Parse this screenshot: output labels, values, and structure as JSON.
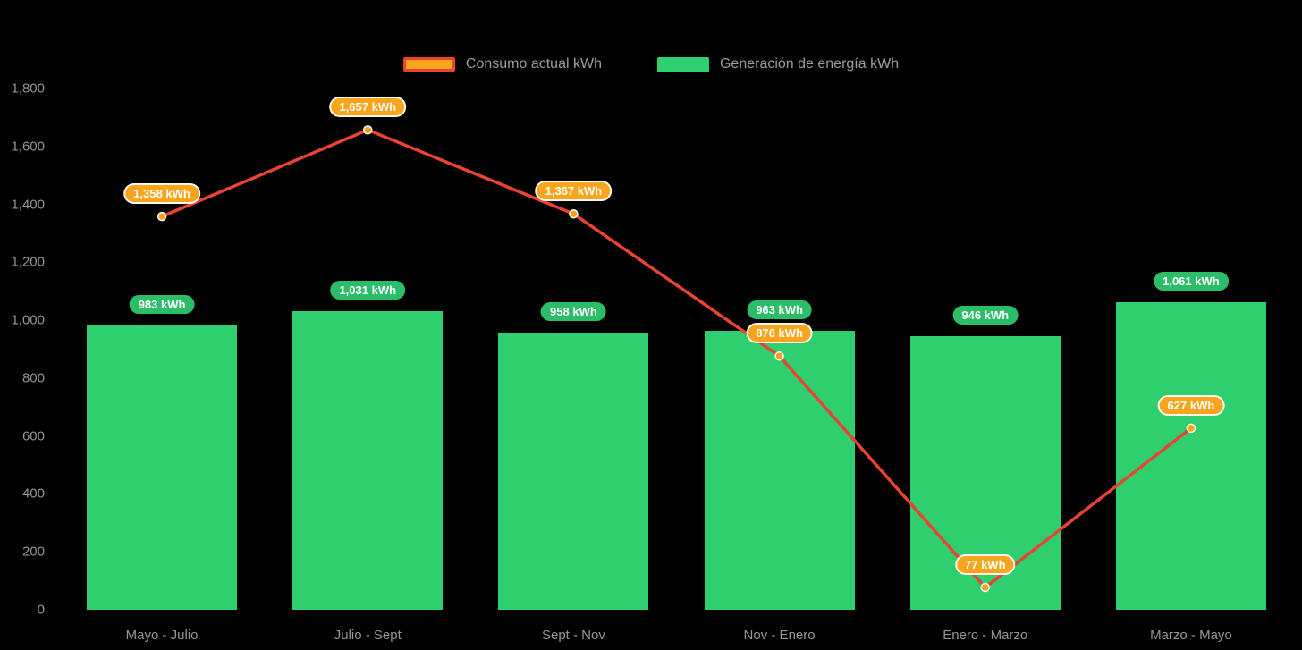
{
  "legend": {
    "position": "top",
    "items": [
      {
        "label": "Consumo actual kWh",
        "swatch": "orange-with-red-border"
      },
      {
        "label": "Generación de energía kWh",
        "swatch": "green"
      }
    ]
  },
  "chart_data": {
    "type": "combo",
    "title": "",
    "xlabel": "",
    "ylabel": "",
    "grid": false,
    "legend_position": "top",
    "background": "#000000",
    "axis_text_color": "#959595",
    "categories": [
      "Mayo - Julio",
      "Julio - Sept",
      "Sept - Nov",
      "Nov - Enero",
      "Enero - Marzo",
      "Marzo - Mayo"
    ],
    "series": [
      {
        "name": "Consumo actual kWh",
        "type": "line",
        "color": "#e94433",
        "point_color": "#f8a41d",
        "label_bg": "#f8a41d",
        "values": [
          1358,
          1657,
          1367,
          876,
          77,
          627
        ],
        "labels": [
          "1,358 kWh",
          "1,657 kWh",
          "1,367 kWh",
          "876 kWh",
          "77 kWh",
          "627 kWh"
        ]
      },
      {
        "name": "Generación de energía kWh",
        "type": "bar",
        "color": "#2fce6f",
        "label_bg": "#2cbd68",
        "values": [
          983,
          1031,
          958,
          963,
          946,
          1061
        ],
        "labels": [
          "983 kWh",
          "1,031 kWh",
          "958 kWh",
          "963 kWh",
          "946 kWh",
          "1,061 kWh"
        ]
      }
    ],
    "ylim": [
      0,
      1800
    ],
    "yticks": [
      {
        "value": 0,
        "label": "0"
      },
      {
        "value": 200,
        "label": "200"
      },
      {
        "value": 400,
        "label": "400"
      },
      {
        "value": 600,
        "label": "600"
      },
      {
        "value": 800,
        "label": "800"
      },
      {
        "value": 1000,
        "label": "1,000"
      },
      {
        "value": 1200,
        "label": "1,200"
      },
      {
        "value": 1400,
        "label": "1,400"
      },
      {
        "value": 1600,
        "label": "1,600"
      },
      {
        "value": 1800,
        "label": "1,800"
      }
    ]
  }
}
